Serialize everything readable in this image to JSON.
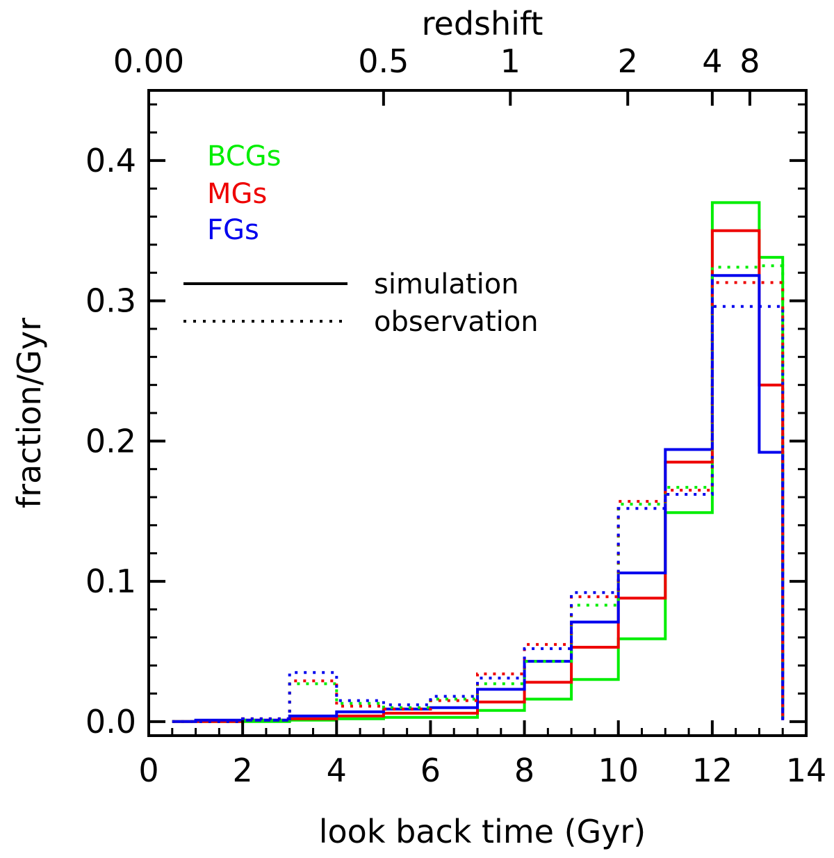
{
  "chart_data": {
    "type": "step-histogram",
    "xlabel": "look back time (Gyr)",
    "ylabel": "fraction/Gyr",
    "top_axis_label": "redshift",
    "xlim": [
      0,
      14
    ],
    "ylim": [
      -0.01,
      0.45
    ],
    "x_ticks": [
      "0",
      "2",
      "4",
      "6",
      "8",
      "10",
      "12",
      "14"
    ],
    "y_ticks": [
      "0.0",
      "0.1",
      "0.2",
      "0.3",
      "0.4"
    ],
    "top_ticks": [
      {
        "label": "0.00",
        "lookback": 0.0
      },
      {
        "label": "0.5",
        "lookback": 5.0
      },
      {
        "label": "1",
        "lookback": 7.7
      },
      {
        "label": "2",
        "lookback": 10.2
      },
      {
        "label": "4",
        "lookback": 12.0
      },
      {
        "label": "8",
        "lookback": 12.8
      }
    ],
    "bin_edges": [
      0.5,
      1,
      2,
      3,
      4,
      5,
      6,
      7,
      8,
      9,
      10,
      11,
      12,
      13,
      13.5
    ],
    "series": [
      {
        "name": "BCGs",
        "color": "#00ee00",
        "style": "solid",
        "values": [
          0.0,
          0.0,
          0.0,
          0.001,
          0.002,
          0.003,
          0.003,
          0.008,
          0.016,
          0.03,
          0.059,
          0.149,
          0.37,
          0.331,
          0.002
        ]
      },
      {
        "name": "MGs",
        "color": "#ee0000",
        "style": "solid",
        "values": [
          0.0,
          0.0,
          0.001,
          0.002,
          0.004,
          0.006,
          0.006,
          0.014,
          0.028,
          0.053,
          0.088,
          0.185,
          0.35,
          0.24,
          0.001
        ]
      },
      {
        "name": "FGs",
        "color": "#0000ee",
        "style": "solid",
        "values": [
          0.0,
          0.001,
          0.001,
          0.004,
          0.007,
          0.009,
          0.01,
          0.023,
          0.043,
          0.071,
          0.106,
          0.194,
          0.318,
          0.192,
          0.001
        ]
      },
      {
        "name": "BCGs",
        "color": "#00ee00",
        "style": "dotted",
        "values": [
          0.0,
          0.0,
          0.001,
          0.027,
          0.013,
          0.01,
          0.016,
          0.027,
          0.043,
          0.083,
          0.155,
          0.167,
          0.324,
          0.325,
          0.002
        ]
      },
      {
        "name": "MGs",
        "color": "#ee0000",
        "style": "dotted",
        "values": [
          0.0,
          0.0,
          0.002,
          0.029,
          0.011,
          0.009,
          0.015,
          0.034,
          0.055,
          0.089,
          0.157,
          0.165,
          0.313,
          0.313,
          0.002
        ]
      },
      {
        "name": "FGs",
        "color": "#0000ee",
        "style": "dotted",
        "values": [
          0.0,
          0.0,
          0.002,
          0.035,
          0.015,
          0.012,
          0.018,
          0.031,
          0.052,
          0.092,
          0.152,
          0.162,
          0.296,
          0.296,
          0.002
        ]
      }
    ],
    "legend_groups": [
      {
        "label": "BCGs",
        "color": "#00ee00"
      },
      {
        "label": "MGs",
        "color": "#ee0000"
      },
      {
        "label": "FGs",
        "color": "#0000ee"
      }
    ],
    "legend_styles": [
      {
        "label": "simulation",
        "style": "solid"
      },
      {
        "label": "observation",
        "style": "dotted"
      }
    ],
    "legend_position": "top-left"
  }
}
